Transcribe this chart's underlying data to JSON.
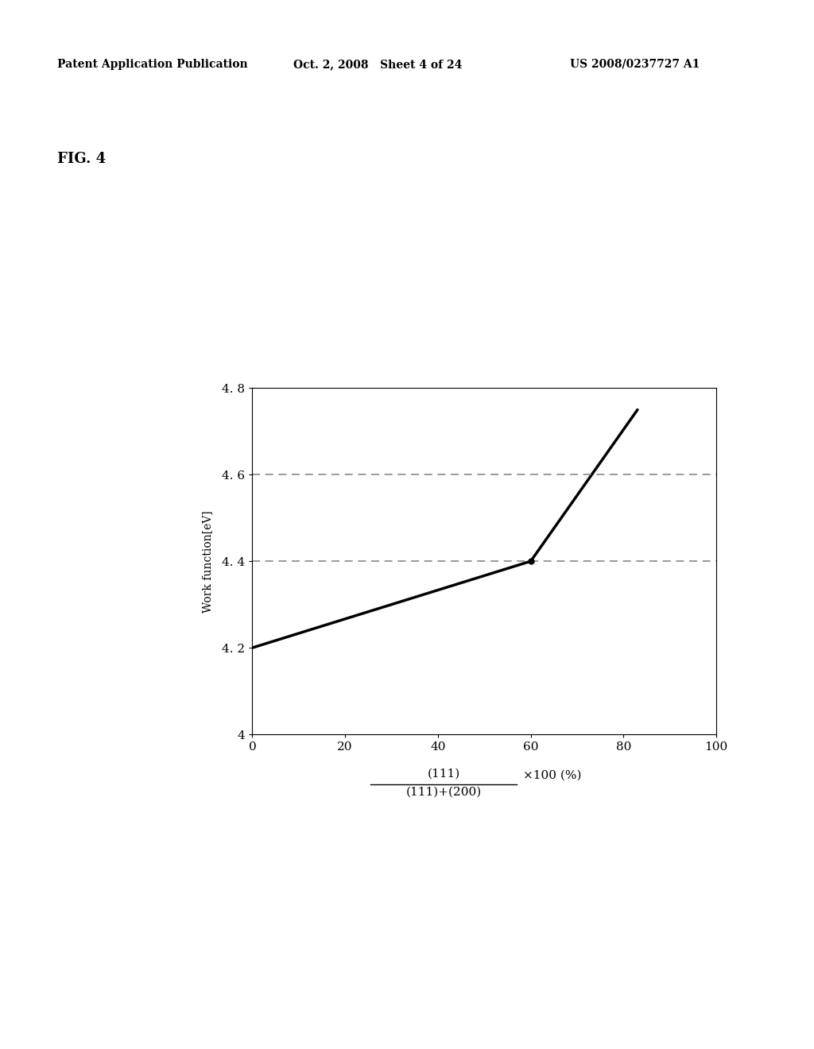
{
  "header_left": "Patent Application Publication",
  "header_mid": "Oct. 2, 2008   Sheet 4 of 24",
  "header_right": "US 2008/0237727 A1",
  "fig_label": "FIG. 4",
  "ylabel": "Work function[eV]",
  "xlabel_line1": "(111)",
  "xlabel_line2": "(111)+(200)",
  "xlabel_suffix": "×100 (%)",
  "xlim": [
    0,
    100
  ],
  "ylim": [
    4.0,
    4.8
  ],
  "xticks": [
    0,
    20,
    40,
    60,
    80,
    100
  ],
  "ytick_values": [
    4.0,
    4.2,
    4.4,
    4.6,
    4.8
  ],
  "ytick_labels": [
    "4",
    "4. 2",
    "4. 4",
    "4. 6",
    "4. 8"
  ],
  "data_x": [
    0,
    60,
    83
  ],
  "data_y": [
    4.2,
    4.4,
    4.75
  ],
  "dot_x": 60,
  "dot_y": 4.4,
  "hline1_y": 4.4,
  "hline2_y": 4.6,
  "line_color": "#000000",
  "dashed_color": "#888888",
  "background_color": "#ffffff",
  "header_fontsize": 10,
  "fig_label_fontsize": 13,
  "ylabel_fontsize": 10,
  "xlabel_fontsize": 11,
  "tick_fontsize": 11
}
